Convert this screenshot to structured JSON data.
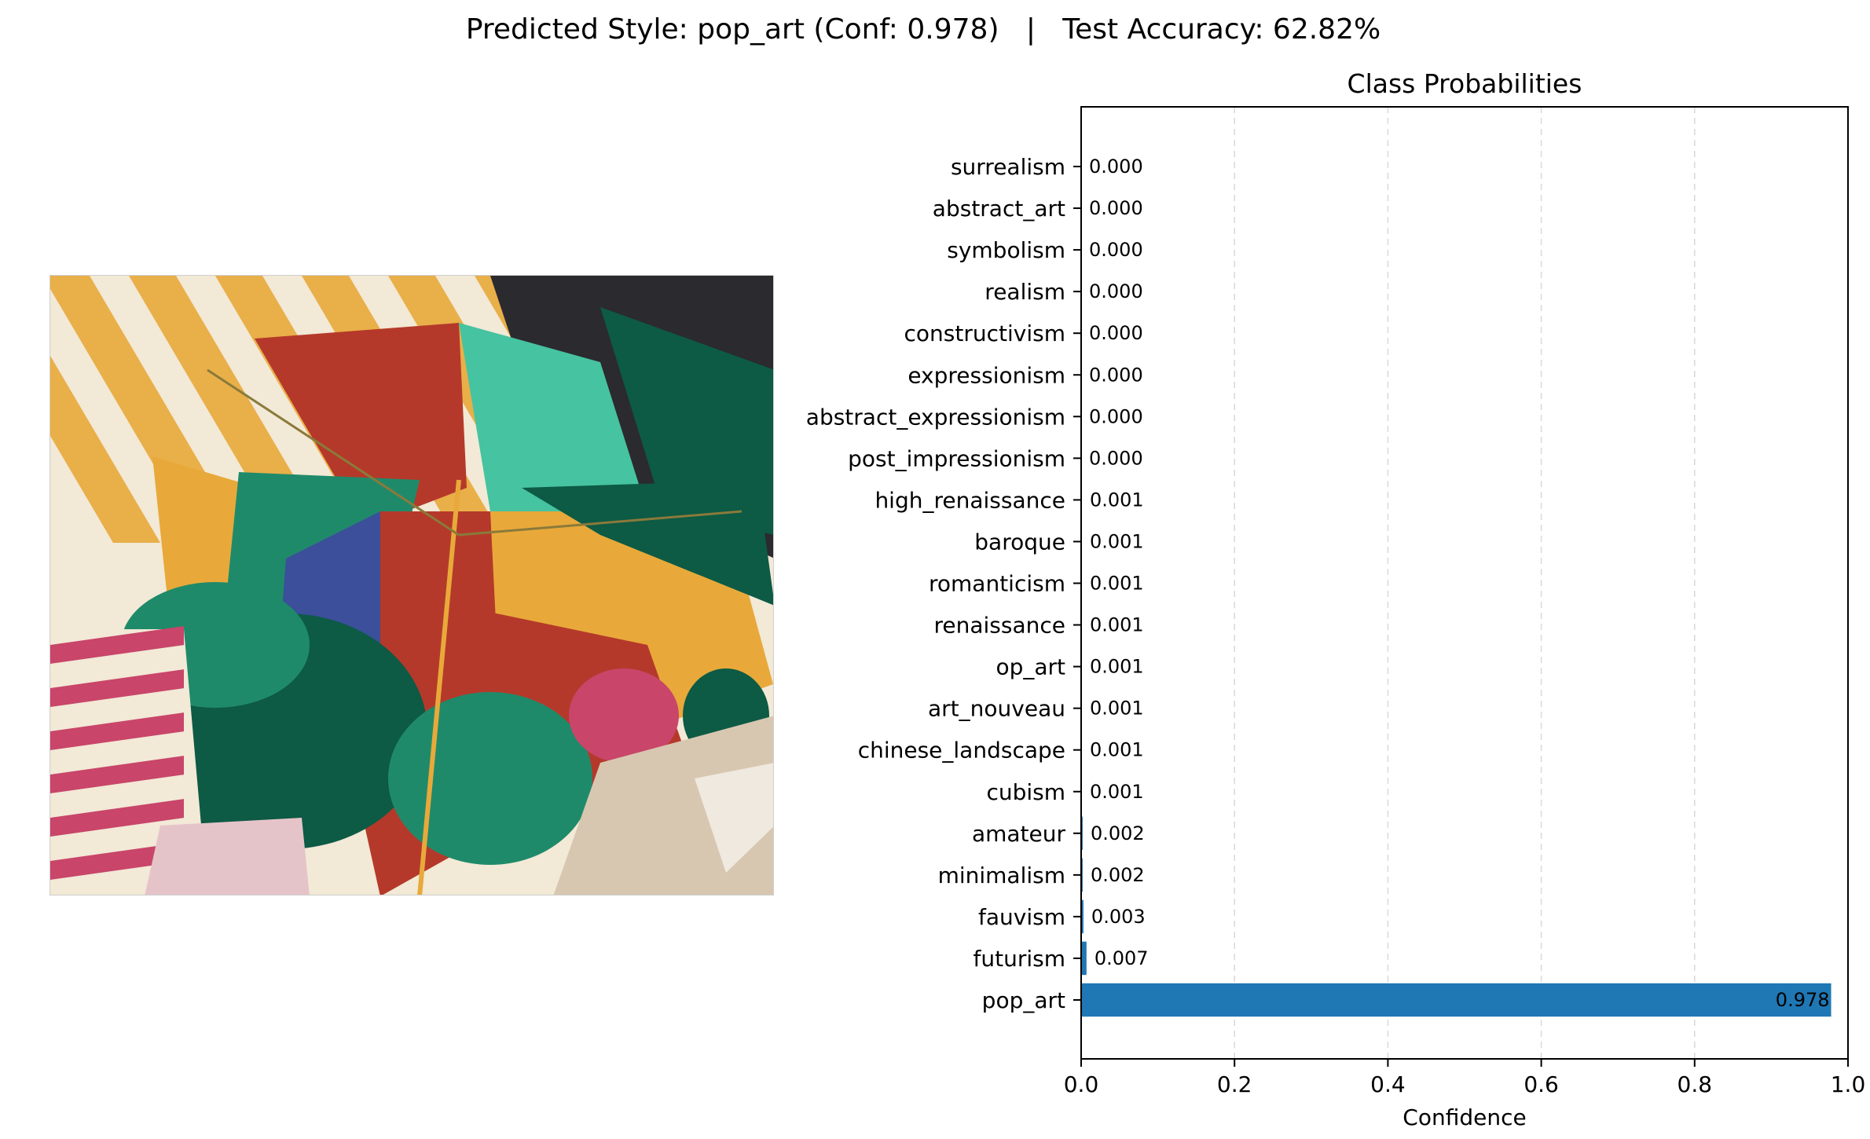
{
  "figure": {
    "suptitle": "Predicted Style: pop_art (Conf: 0.978)   |   Test Accuracy: 62.82%"
  },
  "image_panel": {
    "alt": "",
    "palette": [
      "#e8a93a",
      "#f2e9d6",
      "#b5392a",
      "#1f8a6a",
      "#46c3a0",
      "#3b4f9a",
      "#0d5a45",
      "#c9456a",
      "#2b2a2e",
      "#d8c7b0"
    ]
  },
  "chart_data": {
    "type": "bar",
    "orientation": "horizontal",
    "title": "Class Probabilities",
    "xlabel": "Confidence",
    "ylabel": "",
    "xlim": [
      0.0,
      1.0
    ],
    "xticks": [
      "0.0",
      "0.2",
      "0.4",
      "0.6",
      "0.8",
      "1.0"
    ],
    "grid": "x-dashed",
    "bar_color": "#1f77b4",
    "categories": [
      "surrealism",
      "abstract_art",
      "symbolism",
      "realism",
      "constructivism",
      "expressionism",
      "abstract_expressionism",
      "post_impressionism",
      "high_renaissance",
      "baroque",
      "romanticism",
      "renaissance",
      "op_art",
      "art_nouveau",
      "chinese_landscape",
      "cubism",
      "amateur",
      "minimalism",
      "fauvism",
      "futurism",
      "pop_art"
    ],
    "values": [
      0.0,
      0.0,
      0.0,
      0.0,
      0.0,
      0.0,
      0.0,
      0.0,
      0.001,
      0.001,
      0.001,
      0.001,
      0.001,
      0.001,
      0.001,
      0.001,
      0.002,
      0.002,
      0.003,
      0.007,
      0.978
    ],
    "value_labels": [
      "0.000",
      "0.000",
      "0.000",
      "0.000",
      "0.000",
      "0.000",
      "0.000",
      "0.000",
      "0.001",
      "0.001",
      "0.001",
      "0.001",
      "0.001",
      "0.001",
      "0.001",
      "0.001",
      "0.002",
      "0.002",
      "0.003",
      "0.007",
      "0.978"
    ]
  }
}
